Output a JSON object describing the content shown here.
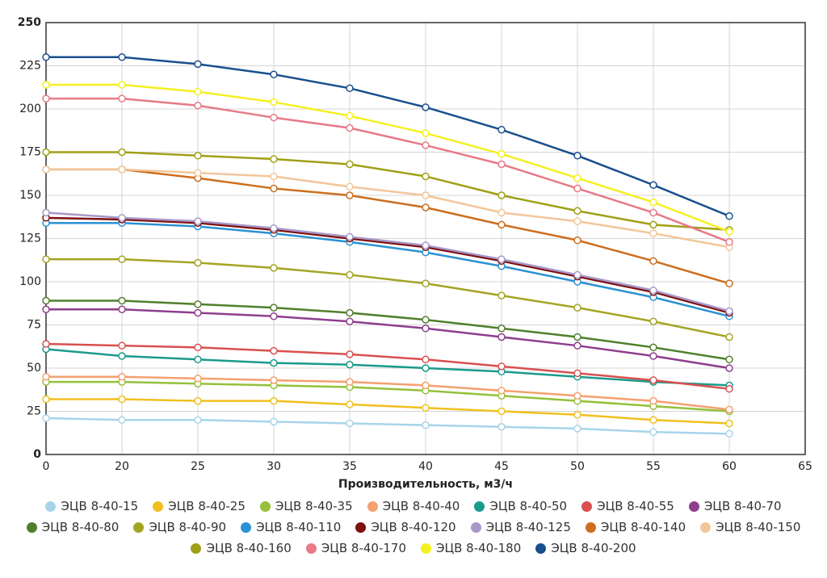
{
  "chart_data": {
    "type": "line",
    "x_label": "Производительность, м3/ч",
    "categories": [
      0,
      20,
      25,
      30,
      35,
      40,
      45,
      50,
      55,
      60,
      65
    ],
    "ylim": [
      0,
      250
    ],
    "yticks": [
      0,
      25,
      50,
      75,
      100,
      125,
      150,
      175,
      200,
      225,
      250
    ],
    "grid": true,
    "series": [
      {
        "name": "ЭЦВ 8-40-15",
        "color": "#a8d4ea",
        "values": [
          21,
          20,
          20,
          19,
          18,
          17,
          16,
          15,
          13,
          12,
          null
        ]
      },
      {
        "name": "ЭЦВ 8-40-25",
        "color": "#f0c020",
        "values": [
          32,
          32,
          31,
          31,
          29,
          27,
          25,
          23,
          20,
          18,
          null
        ]
      },
      {
        "name": "ЭЦВ 8-40-35",
        "color": "#94c03a",
        "values": [
          42,
          42,
          41,
          40,
          39,
          37,
          34,
          31,
          28,
          25,
          null
        ]
      },
      {
        "name": "ЭЦВ 8-40-40",
        "color": "#f4a070",
        "values": [
          45,
          45,
          44,
          43,
          42,
          40,
          37,
          34,
          31,
          26,
          null
        ]
      },
      {
        "name": "ЭЦВ 8-40-50",
        "color": "#1a9a8c",
        "values": [
          61,
          57,
          55,
          53,
          52,
          50,
          48,
          45,
          42,
          40,
          null
        ]
      },
      {
        "name": "ЭЦВ 8-40-55",
        "color": "#d85050",
        "values": [
          64,
          63,
          62,
          60,
          58,
          55,
          51,
          47,
          43,
          38,
          null
        ]
      },
      {
        "name": "ЭЦВ 8-40-70",
        "color": "#8e3e8e",
        "values": [
          84,
          84,
          82,
          80,
          77,
          73,
          68,
          63,
          57,
          50,
          null
        ]
      },
      {
        "name": "ЭЦВ 8-40-80",
        "color": "#4f7f2c",
        "values": [
          89,
          89,
          87,
          85,
          82,
          78,
          73,
          68,
          62,
          55,
          null
        ]
      },
      {
        "name": "ЭЦВ 8-40-90",
        "color": "#a4a424",
        "values": [
          113,
          113,
          111,
          108,
          104,
          99,
          92,
          85,
          77,
          68,
          null
        ]
      },
      {
        "name": "ЭЦВ 8-40-110",
        "color": "#2a92d2",
        "values": [
          134,
          134,
          132,
          128,
          123,
          117,
          109,
          100,
          91,
          80,
          null
        ]
      },
      {
        "name": "ЭЦВ 8-40-120",
        "color": "#7e1010",
        "values": [
          137,
          136,
          134,
          130,
          125,
          120,
          112,
          103,
          94,
          82,
          null
        ]
      },
      {
        "name": "ЭЦВ 8-40-125",
        "color": "#a898c8",
        "values": [
          140,
          137,
          135,
          131,
          126,
          121,
          113,
          104,
          95,
          83,
          null
        ]
      },
      {
        "name": "ЭЦВ 8-40-140",
        "color": "#cc6e1e",
        "values": [
          165,
          165,
          160,
          154,
          150,
          143,
          133,
          124,
          112,
          99,
          null
        ]
      },
      {
        "name": "ЭЦВ 8-40-150",
        "color": "#f2c69a",
        "values": [
          165,
          165,
          163,
          161,
          155,
          150,
          140,
          135,
          128,
          120,
          null
        ]
      },
      {
        "name": "ЭЦВ 8-40-160",
        "color": "#a0a018",
        "values": [
          175,
          175,
          173,
          171,
          168,
          161,
          150,
          141,
          133,
          130,
          null
        ]
      },
      {
        "name": "ЭЦВ 8-40-170",
        "color": "#e67a88",
        "values": [
          206,
          206,
          202,
          195,
          189,
          179,
          168,
          154,
          140,
          123,
          null
        ]
      },
      {
        "name": "ЭЦВ 8-40-180",
        "color": "#f4f020",
        "values": [
          214,
          214,
          210,
          204,
          196,
          186,
          174,
          160,
          146,
          129,
          null
        ]
      },
      {
        "name": "ЭЦВ 8-40-200",
        "color": "#1a4f8e",
        "values": [
          230,
          230,
          226,
          220,
          212,
          201,
          188,
          173,
          156,
          138,
          null
        ]
      }
    ]
  }
}
